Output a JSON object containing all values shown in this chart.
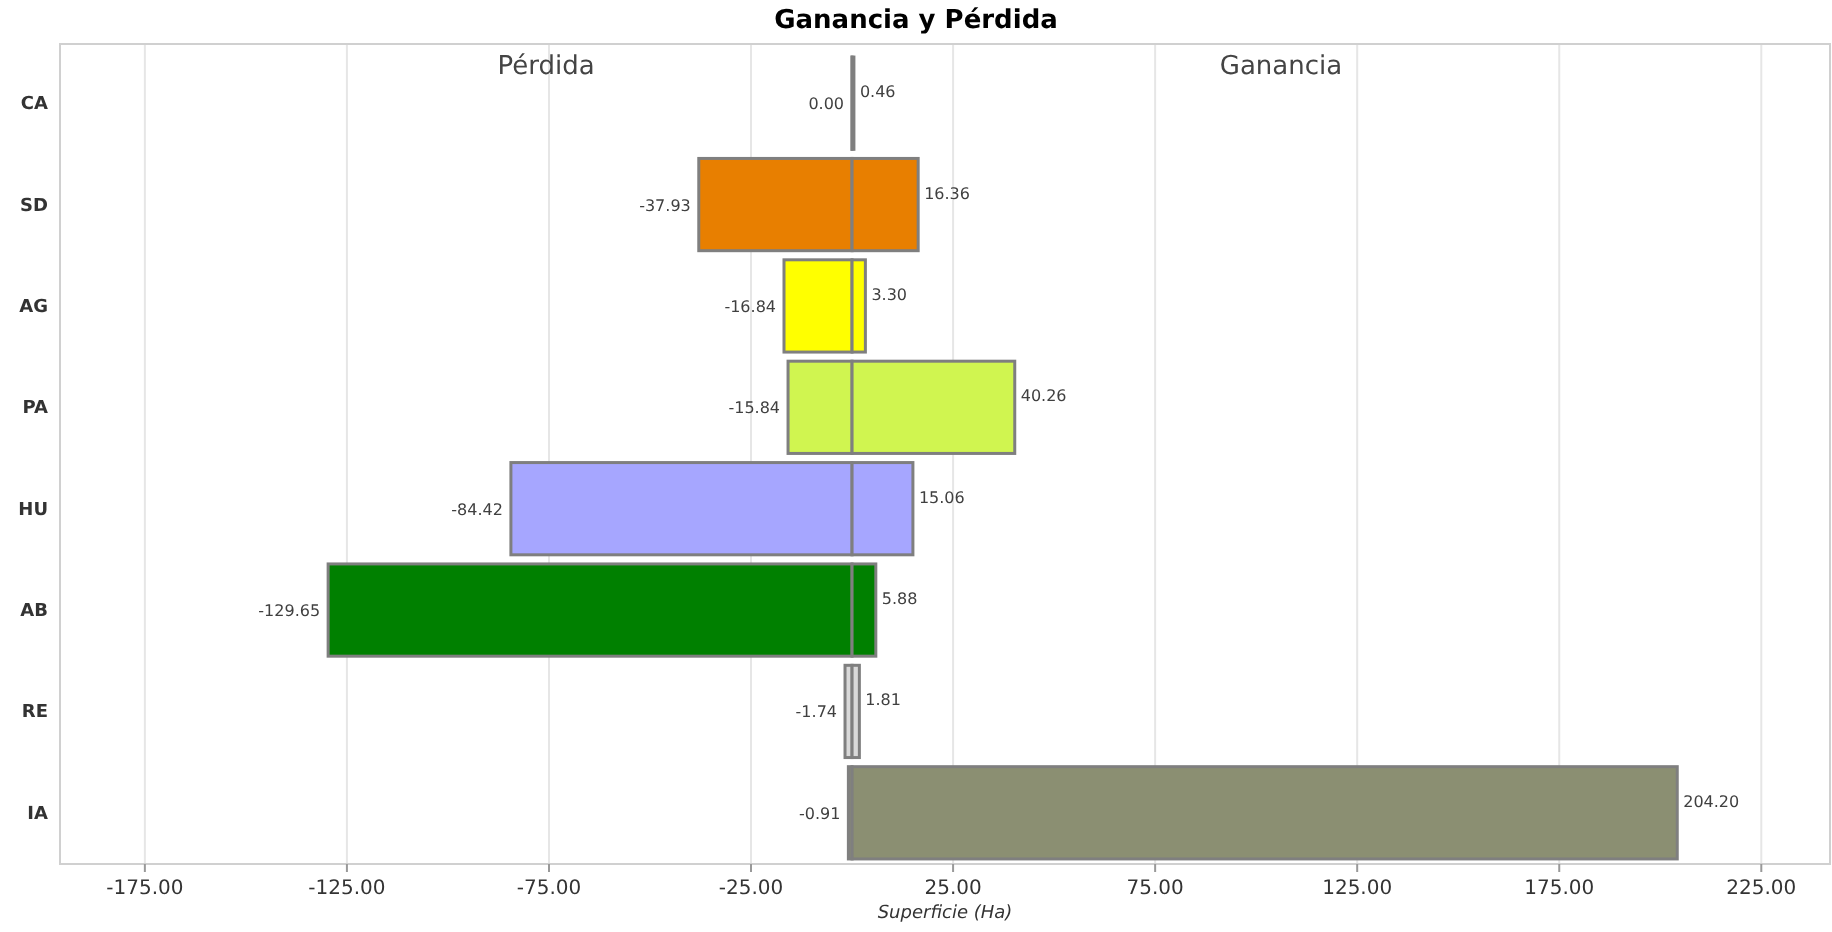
{
  "chart_data": {
    "type": "bar",
    "orientation": "horizontal",
    "stacked": true,
    "title": "Ganancia y Pérdida",
    "xlabel": "Superficie (Ha)",
    "annotations": [
      "Pérdida",
      "Ganancia"
    ],
    "categories": [
      "CA",
      "SD",
      "AG",
      "PA",
      "HU",
      "AB",
      "RE",
      "IA"
    ],
    "series": [
      {
        "values": [
          0,
          -37.93,
          -16.84,
          -15.84,
          -84.42,
          -129.65,
          -1.74,
          -0.91
        ],
        "value_labels": [
          "0.00",
          "-37.93",
          "-16.84",
          "-15.84",
          "-84.42",
          "-129.65",
          "-1.74",
          "-0.91"
        ],
        "colors": [
          "#808080",
          "#e87f00",
          "#ffff00",
          "#d0f550",
          "#a6a6ff",
          "#008000",
          "#d9d9d9",
          "#8b8f72"
        ]
      },
      {
        "values": [
          0.46,
          16.36,
          3.3,
          40.26,
          15.06,
          5.88,
          1.81,
          204.2
        ],
        "value_labels": [
          "0.46",
          "16.36",
          "3.30",
          "40.26",
          "15.06",
          "5.88",
          "1.81",
          "204.20"
        ],
        "colors": [
          "#808080",
          "#e87f00",
          "#ffff00",
          "#d0f550",
          "#a6a6ff",
          "#008000",
          "#d9d9d9",
          "#8b8f72"
        ]
      }
    ],
    "xlim": [
      -196,
      242
    ],
    "xticks": [
      {
        "value": -175,
        "label": "-175.00"
      },
      {
        "value": -125,
        "label": "-125.00"
      },
      {
        "value": -75,
        "label": "-75.00"
      },
      {
        "value": -25,
        "label": "-25.00"
      },
      {
        "value": 25,
        "label": "25.00"
      },
      {
        "value": 75,
        "label": "75.00"
      },
      {
        "value": 125,
        "label": "125.00"
      },
      {
        "value": 175,
        "label": "175.00"
      },
      {
        "value": 225,
        "label": "225.00"
      }
    ],
    "grid": "x"
  }
}
